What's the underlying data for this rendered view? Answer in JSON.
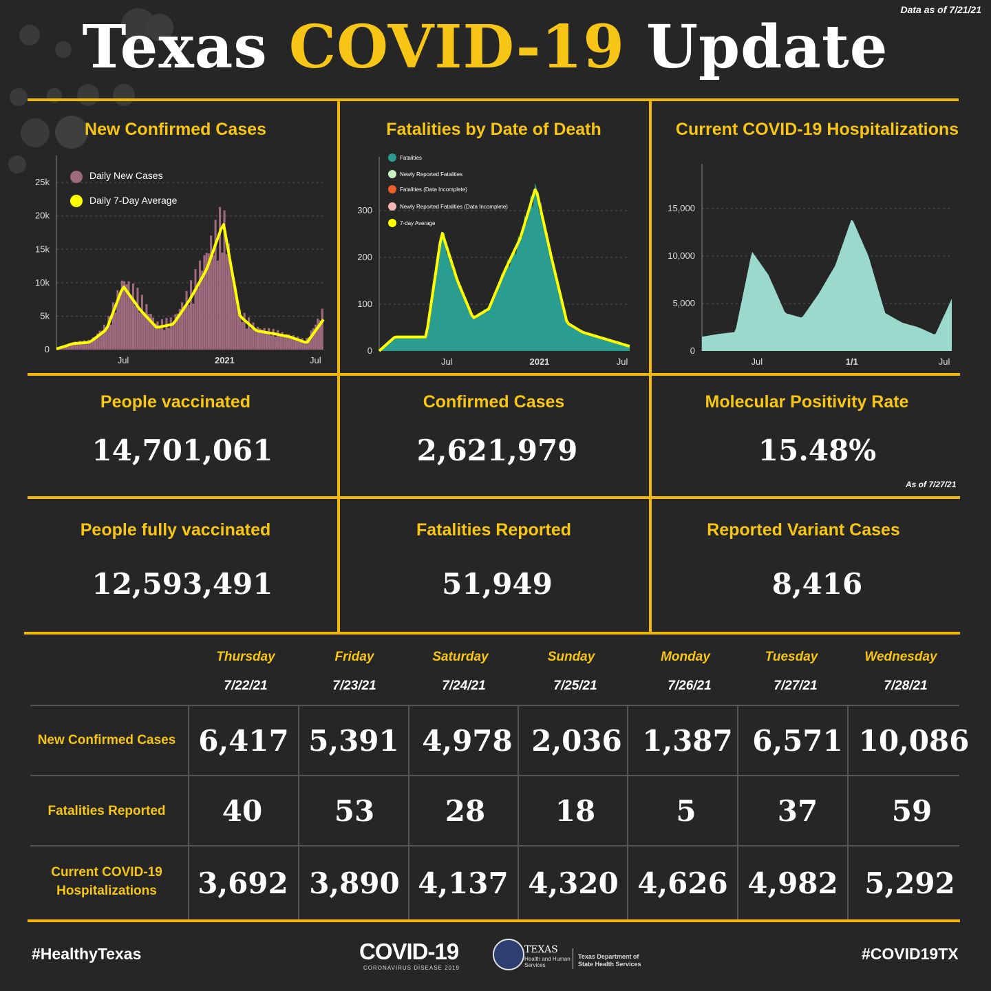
{
  "header": {
    "data_date": "Data as of 7/21/21",
    "title_part1": "Texas ",
    "title_highlight": "COVID-19",
    "title_part3": " Update"
  },
  "panels": {
    "chart1_title": "New Confirmed Cases",
    "chart2_title": "Fatalities by Date of Death",
    "chart3_title": "Current COVID-19 Hospitalizations"
  },
  "stats": {
    "people_vaccinated": {
      "label": "People vaccinated",
      "value": "14,701,061"
    },
    "confirmed_cases": {
      "label": "Confirmed Cases",
      "value": "2,621,979"
    },
    "positivity": {
      "label": "Molecular Positivity Rate",
      "value": "15.48%",
      "note": "As of 7/27/21"
    },
    "fully_vaccinated": {
      "label": "People fully vaccinated",
      "value": "12,593,491"
    },
    "fatalities": {
      "label": "Fatalities Reported",
      "value": "51,949"
    },
    "variants": {
      "label": "Reported Variant Cases",
      "value": "8,416"
    }
  },
  "table": {
    "days": [
      {
        "name": "Thursday",
        "date": "7/22/21"
      },
      {
        "name": "Friday",
        "date": "7/23/21"
      },
      {
        "name": "Saturday",
        "date": "7/24/21"
      },
      {
        "name": "Sunday",
        "date": "7/25/21"
      },
      {
        "name": "Monday",
        "date": "7/26/21"
      },
      {
        "name": "Tuesday",
        "date": "7/27/21"
      },
      {
        "name": "Wednesday",
        "date": "7/28/21"
      }
    ],
    "rows": [
      {
        "label": "New Confirmed Cases",
        "values": [
          "6,417",
          "5,391",
          "4,978",
          "2,036",
          "1,387",
          "6,571",
          "10,086"
        ]
      },
      {
        "label": "Fatalities Reported",
        "values": [
          "40",
          "53",
          "28",
          "18",
          "5",
          "37",
          "59"
        ]
      },
      {
        "label": "Current COVID-19 Hospitalizations",
        "values": [
          "3,692",
          "3,890",
          "4,137",
          "4,320",
          "4,626",
          "4,982",
          "5,292"
        ]
      }
    ]
  },
  "footer": {
    "hashtag_left": "#HealthyTexas",
    "hashtag_right": "#COVID19TX",
    "logo_covid": "COVID-19",
    "logo_covid_sub": "CORONAVIRUS DISEASE 2019",
    "hhs_texas": "TEXAS",
    "hhs_sub": "Health and Human Services",
    "dshs": "Texas Department of State Health Services"
  },
  "colors": {
    "accent": "#f6c515",
    "background": "#262626",
    "cases_bar": "#9e6a7e",
    "fatal_area": "#2a9d90",
    "hosp_area": "#9ad9cc",
    "avg_line": "#ffff00"
  },
  "chart_data": [
    {
      "type": "bar",
      "title": "New Confirmed Cases",
      "series": [
        {
          "name": "Daily New Cases",
          "x": [
            "Mar 2020",
            "Apr 2020",
            "May 2020",
            "Jun 2020",
            "Jul 2020",
            "Aug 2020",
            "Sep 2020",
            "Oct 2020",
            "Nov 2020",
            "Dec 2020",
            "Jan 2021",
            "Feb 2021",
            "Mar 2021",
            "Apr 2021",
            "May 2021",
            "Jun 2021",
            "Jul 2021"
          ],
          "values": [
            200,
            1000,
            1200,
            3500,
            9500,
            7000,
            3500,
            4000,
            8000,
            13000,
            18000,
            5000,
            3000,
            2500,
            2000,
            1200,
            5000
          ]
        },
        {
          "name": "Daily 7-Day Average",
          "x": [
            "Mar 2020",
            "Apr 2020",
            "May 2020",
            "Jun 2020",
            "Jul 2020",
            "Aug 2020",
            "Sep 2020",
            "Oct 2020",
            "Nov 2020",
            "Dec 2020",
            "Jan 2021",
            "Feb 2021",
            "Mar 2021",
            "Apr 2021",
            "May 2021",
            "Jun 2021",
            "Jul 2021"
          ],
          "values": [
            100,
            900,
            1100,
            3000,
            9500,
            6000,
            3300,
            3800,
            7500,
            12000,
            19000,
            5000,
            2800,
            2400,
            1900,
            1000,
            4500
          ]
        }
      ],
      "x_ticks": [
        "Jul",
        "2021",
        "Jul"
      ],
      "y_ticks": [
        "0",
        "5k",
        "10k",
        "15k",
        "20k",
        "25k"
      ],
      "ylim": [
        0,
        28000
      ]
    },
    {
      "type": "area",
      "title": "Fatalities by Date of Death",
      "legend": [
        "Fatalities",
        "Newly Reported Fatalities",
        "Fatalities (Data Incomplete)",
        "Newly Reported Fatalities (Data Incomplete)",
        "7-day Average"
      ],
      "series": [
        {
          "name": "7-day Average",
          "x": [
            "Mar 2020",
            "Apr 2020",
            "May 2020",
            "Jun 2020",
            "Jul 2020",
            "Aug 2020",
            "Sep 2020",
            "Oct 2020",
            "Nov 2020",
            "Dec 2020",
            "Jan 2021",
            "Feb 2021",
            "Mar 2021",
            "Apr 2021",
            "May 2021",
            "Jun 2021",
            "Jul 2021"
          ],
          "values": [
            0,
            30,
            30,
            30,
            255,
            150,
            70,
            90,
            170,
            240,
            350,
            200,
            60,
            40,
            30,
            20,
            10
          ]
        }
      ],
      "x_ticks": [
        "Jul",
        "2021",
        "Jul"
      ],
      "y_ticks": [
        "0",
        "100",
        "200",
        "300"
      ],
      "ylim": [
        0,
        400
      ]
    },
    {
      "type": "area",
      "title": "Current COVID-19 Hospitalizations",
      "series": [
        {
          "name": "Hospitalizations",
          "x": [
            "Apr 2020",
            "May 2020",
            "Jun 2020",
            "Jul 2020",
            "Aug 2020",
            "Sep 2020",
            "Oct 2020",
            "Nov 2020",
            "Dec 2020",
            "Jan 2021",
            "Feb 2021",
            "Mar 2021",
            "Apr 2021",
            "May 2021",
            "Jun 2021",
            "Jul 2021"
          ],
          "values": [
            1500,
            1800,
            2000,
            10500,
            8000,
            4000,
            3500,
            6000,
            9000,
            14000,
            10000,
            4000,
            3000,
            2500,
            1700,
            5500
          ]
        }
      ],
      "x_ticks": [
        "Jul",
        "1/1",
        "Jul"
      ],
      "y_ticks": [
        "0",
        "5,000",
        "10,000",
        "15,000"
      ],
      "ylim": [
        0,
        19000
      ]
    }
  ]
}
